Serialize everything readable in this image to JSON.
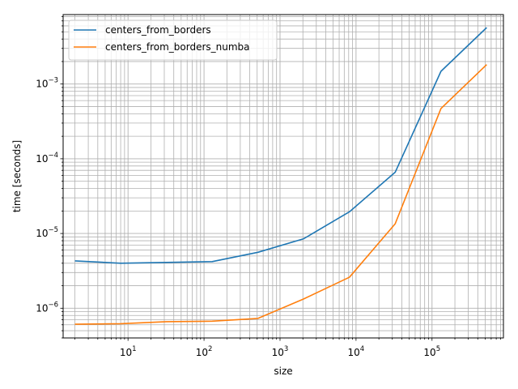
{
  "chart_data": {
    "type": "line",
    "xlabel": "size",
    "ylabel": "time [seconds]",
    "xscale": "log",
    "yscale": "log",
    "xlim": [
      1.4,
      870000
    ],
    "ylim": [
      4e-07,
      0.0085
    ],
    "grid": "major and minor",
    "legend_position": "top-left",
    "xticks": [
      {
        "value": 10,
        "base": "10",
        "exp": "1"
      },
      {
        "value": 100,
        "base": "10",
        "exp": "2"
      },
      {
        "value": 1000,
        "base": "10",
        "exp": "3"
      },
      {
        "value": 10000,
        "base": "10",
        "exp": "4"
      },
      {
        "value": 100000,
        "base": "10",
        "exp": "5"
      }
    ],
    "yticks": [
      {
        "value": 1e-06,
        "base": "10",
        "exp": "−6"
      },
      {
        "value": 1e-05,
        "base": "10",
        "exp": "−5"
      },
      {
        "value": 0.0001,
        "base": "10",
        "exp": "−4"
      },
      {
        "value": 0.001,
        "base": "10",
        "exp": "−3"
      }
    ],
    "series": [
      {
        "name": "centers_from_borders",
        "color": "#1f77b4",
        "x": [
          2,
          8,
          32,
          128,
          512,
          2048,
          8192,
          32768,
          131072,
          524288
        ],
        "y": [
          4.3e-06,
          4e-06,
          4.1e-06,
          4.2e-06,
          5.6e-06,
          8.5e-06,
          1.95e-05,
          6.6e-05,
          0.00148,
          0.0057
        ]
      },
      {
        "name": "centers_from_borders_numba",
        "color": "#ff7f0e",
        "x": [
          2,
          8,
          32,
          128,
          512,
          2048,
          8192,
          32768,
          131072,
          524288
        ],
        "y": [
          6.1e-07,
          6.2e-07,
          6.6e-07,
          6.7e-07,
          7.3e-07,
          1.33e-06,
          2.6e-06,
          1.35e-05,
          0.00047,
          0.00182
        ]
      }
    ]
  }
}
